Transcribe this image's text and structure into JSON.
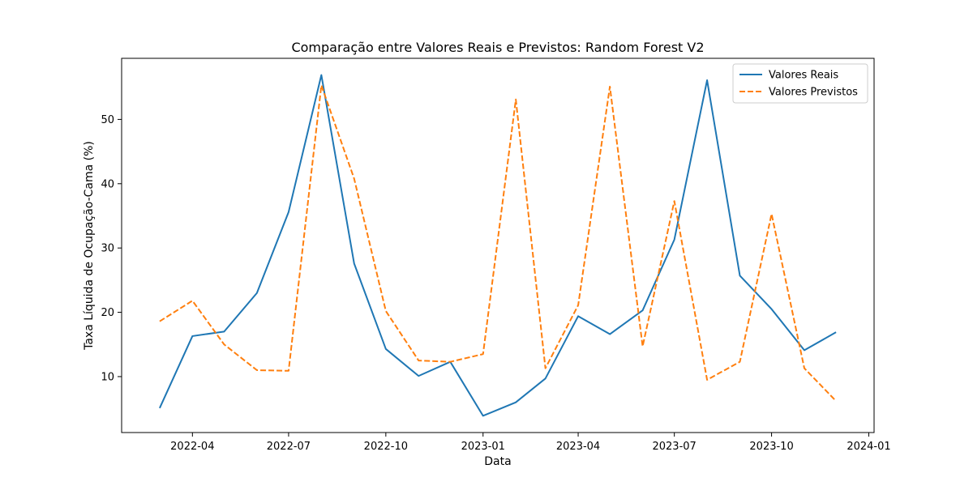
{
  "chart_data": {
    "type": "line",
    "title": "Comparação entre Valores Reais e Previstos: Random Forest V2",
    "xlabel": "Data",
    "ylabel": "Taxa Líquida de Ocupação-Cama (%)",
    "x": [
      "2022-03-01",
      "2022-04-01",
      "2022-05-01",
      "2022-06-01",
      "2022-07-01",
      "2022-08-01",
      "2022-09-01",
      "2022-10-01",
      "2022-11-01",
      "2022-12-01",
      "2023-01-01",
      "2023-02-01",
      "2023-03-01",
      "2023-04-01",
      "2023-05-01",
      "2023-06-01",
      "2023-07-01",
      "2023-08-01",
      "2023-09-01",
      "2023-10-01",
      "2023-11-01",
      "2023-12-01"
    ],
    "series": [
      {
        "name": "Valores Reais",
        "color": "#1f77b4",
        "style": "solid",
        "values": [
          5.1,
          16.3,
          17.0,
          23.0,
          35.6,
          56.9,
          27.6,
          14.3,
          10.1,
          12.3,
          3.9,
          6.0,
          9.7,
          19.4,
          16.6,
          20.3,
          31.3,
          56.1,
          25.7,
          20.5,
          14.1,
          16.9
        ]
      },
      {
        "name": "Valores Previstos",
        "color": "#ff7f0e",
        "style": "dashed",
        "values": [
          18.6,
          21.8,
          15.0,
          11.0,
          10.9,
          55.3,
          40.8,
          20.2,
          12.5,
          12.3,
          13.5,
          53.1,
          11.3,
          21.1,
          55.1,
          14.7,
          37.3,
          9.5,
          12.3,
          35.3,
          11.3,
          6.2
        ]
      }
    ],
    "xticks": [
      "2022-04",
      "2022-07",
      "2022-10",
      "2023-01",
      "2023-04",
      "2023-07",
      "2023-10",
      "2024-01"
    ],
    "xtick_dates": [
      "2022-04-01",
      "2022-07-01",
      "2022-10-01",
      "2023-01-01",
      "2023-04-01",
      "2023-07-01",
      "2023-10-01",
      "2024-01-01"
    ],
    "xlim": [
      "2022-01-24",
      "2024-01-06"
    ],
    "ylim": [
      1.3,
      59.5
    ],
    "yticks": [
      10,
      20,
      30,
      40,
      50
    ],
    "legend": "top-right",
    "grid": false
  }
}
